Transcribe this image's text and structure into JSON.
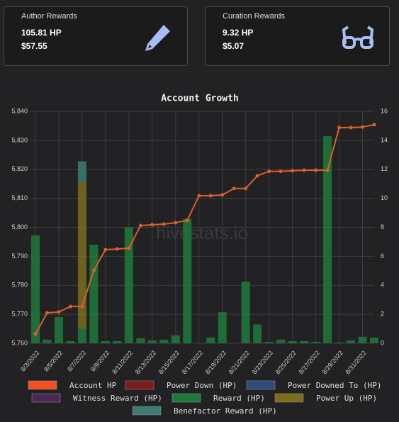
{
  "cards": [
    {
      "title": "Author Rewards",
      "hp": "105.81 HP",
      "usd": "$57.55"
    },
    {
      "title": "Curation Rewards",
      "hp": "9.32 HP",
      "usd": "$5.07"
    }
  ],
  "chart_data": {
    "type": "combo",
    "title": "Account Growth",
    "watermark": "hivestats.io",
    "categories": [
      "8/3/2022",
      null,
      "8/5/2022",
      null,
      "8/7/2022",
      null,
      "8/9/2022",
      null,
      "8/11/2022",
      null,
      "8/13/2022",
      null,
      "8/15/2022",
      null,
      "8/17/2022",
      null,
      "8/19/2022",
      null,
      "8/21/2022",
      null,
      "8/23/2022",
      null,
      "8/25/2022",
      null,
      "8/27/2022",
      null,
      "8/29/2022",
      null,
      "8/31/2022",
      null
    ],
    "ylim": [
      5760,
      5840
    ],
    "yticks": [
      {
        "value": 5760,
        "label": "5,760"
      },
      {
        "value": 5770,
        "label": "5,770"
      },
      {
        "value": 5780,
        "label": "5,780"
      },
      {
        "value": 5790,
        "label": "5,790"
      },
      {
        "value": 5800,
        "label": "5,800"
      },
      {
        "value": 5810,
        "label": "5,810"
      },
      {
        "value": 5820,
        "label": "5,820"
      },
      {
        "value": 5830,
        "label": "5,830"
      },
      {
        "value": 5840,
        "label": "5,840"
      }
    ],
    "y2lim": [
      0,
      16
    ],
    "y2ticks": [
      0,
      2,
      4,
      6,
      8,
      10,
      12,
      14,
      16
    ],
    "grid": true,
    "series": [
      {
        "name": "Account HP",
        "type": "line",
        "axis": "y",
        "color": "#d9602a",
        "legend_color": "#f4511e",
        "values": [
          5763.2,
          5770.5,
          5770.8,
          5772.7,
          5772.7,
          5785.2,
          5792.3,
          5792.5,
          5792.8,
          5800.6,
          5800.9,
          5801.1,
          5801.6,
          5802.4,
          5810.9,
          5810.9,
          5811.2,
          5813.4,
          5813.4,
          5817.8,
          5819.3,
          5819.3,
          5819.5,
          5819.7,
          5819.7,
          5819.7,
          5834.4,
          5834.4,
          5834.6,
          5835.4
        ]
      },
      {
        "name": "Power Down (HP)",
        "type": "bar",
        "axis": "y2",
        "color": "#7a1c1c",
        "values": [
          0,
          0,
          0,
          0,
          0,
          0,
          0,
          0,
          0,
          0,
          0,
          0,
          0,
          0,
          0,
          0,
          0,
          0,
          0,
          0,
          0,
          0,
          0,
          0,
          0,
          0,
          0,
          0,
          0,
          0
        ]
      },
      {
        "name": "Power Downed To (HP)",
        "type": "bar",
        "axis": "y2",
        "color": "#2f4c7a",
        "values": [
          0,
          0,
          0,
          0,
          0,
          0,
          0,
          0,
          0,
          0,
          0,
          0,
          0,
          0,
          0,
          0,
          0,
          0,
          0,
          0,
          0,
          0,
          0,
          0,
          0,
          0,
          0,
          0,
          0,
          0
        ]
      },
      {
        "name": "Witness Reward (HP)",
        "type": "bar",
        "axis": "y2",
        "color": "#4a2a55",
        "values": [
          0,
          0,
          0,
          0,
          0,
          0,
          0,
          0,
          0,
          0,
          0,
          0,
          0,
          0,
          0,
          0,
          0,
          0,
          0,
          0,
          0,
          0,
          0,
          0,
          0,
          0,
          0,
          0,
          0,
          0
        ]
      },
      {
        "name": "Reward (HP)",
        "type": "bar",
        "axis": "y2",
        "color": "#1e7a3a",
        "values": [
          7.45,
          0.25,
          1.8,
          0.15,
          1.0,
          6.8,
          0.15,
          0.15,
          8.0,
          0.35,
          0.2,
          0.25,
          0.55,
          8.6,
          0,
          0.4,
          2.15,
          0,
          4.25,
          1.3,
          0.1,
          0.25,
          0.15,
          0.15,
          0.1,
          14.3,
          0.05,
          0.2,
          0.45,
          0.4
        ]
      },
      {
        "name": "Power Up (HP)",
        "type": "bar",
        "axis": "y2",
        "color": "#7a6d1c",
        "values": [
          0,
          0,
          0,
          0,
          10.1,
          0,
          0,
          0,
          0,
          0,
          0,
          0,
          0,
          0,
          0,
          0,
          0,
          0,
          0,
          0,
          0,
          0,
          0,
          0,
          0,
          0,
          0,
          0,
          0,
          0
        ]
      },
      {
        "name": "Benefactor Reward (HP)",
        "type": "bar",
        "axis": "y2",
        "color": "#3f7a73",
        "values": [
          0,
          0,
          0,
          0,
          1.45,
          0,
          0,
          0,
          0,
          0,
          0,
          0,
          0,
          0,
          0,
          0,
          0,
          0,
          0,
          0,
          0,
          0,
          0,
          0,
          0,
          0,
          0,
          0,
          0,
          0
        ]
      }
    ]
  }
}
